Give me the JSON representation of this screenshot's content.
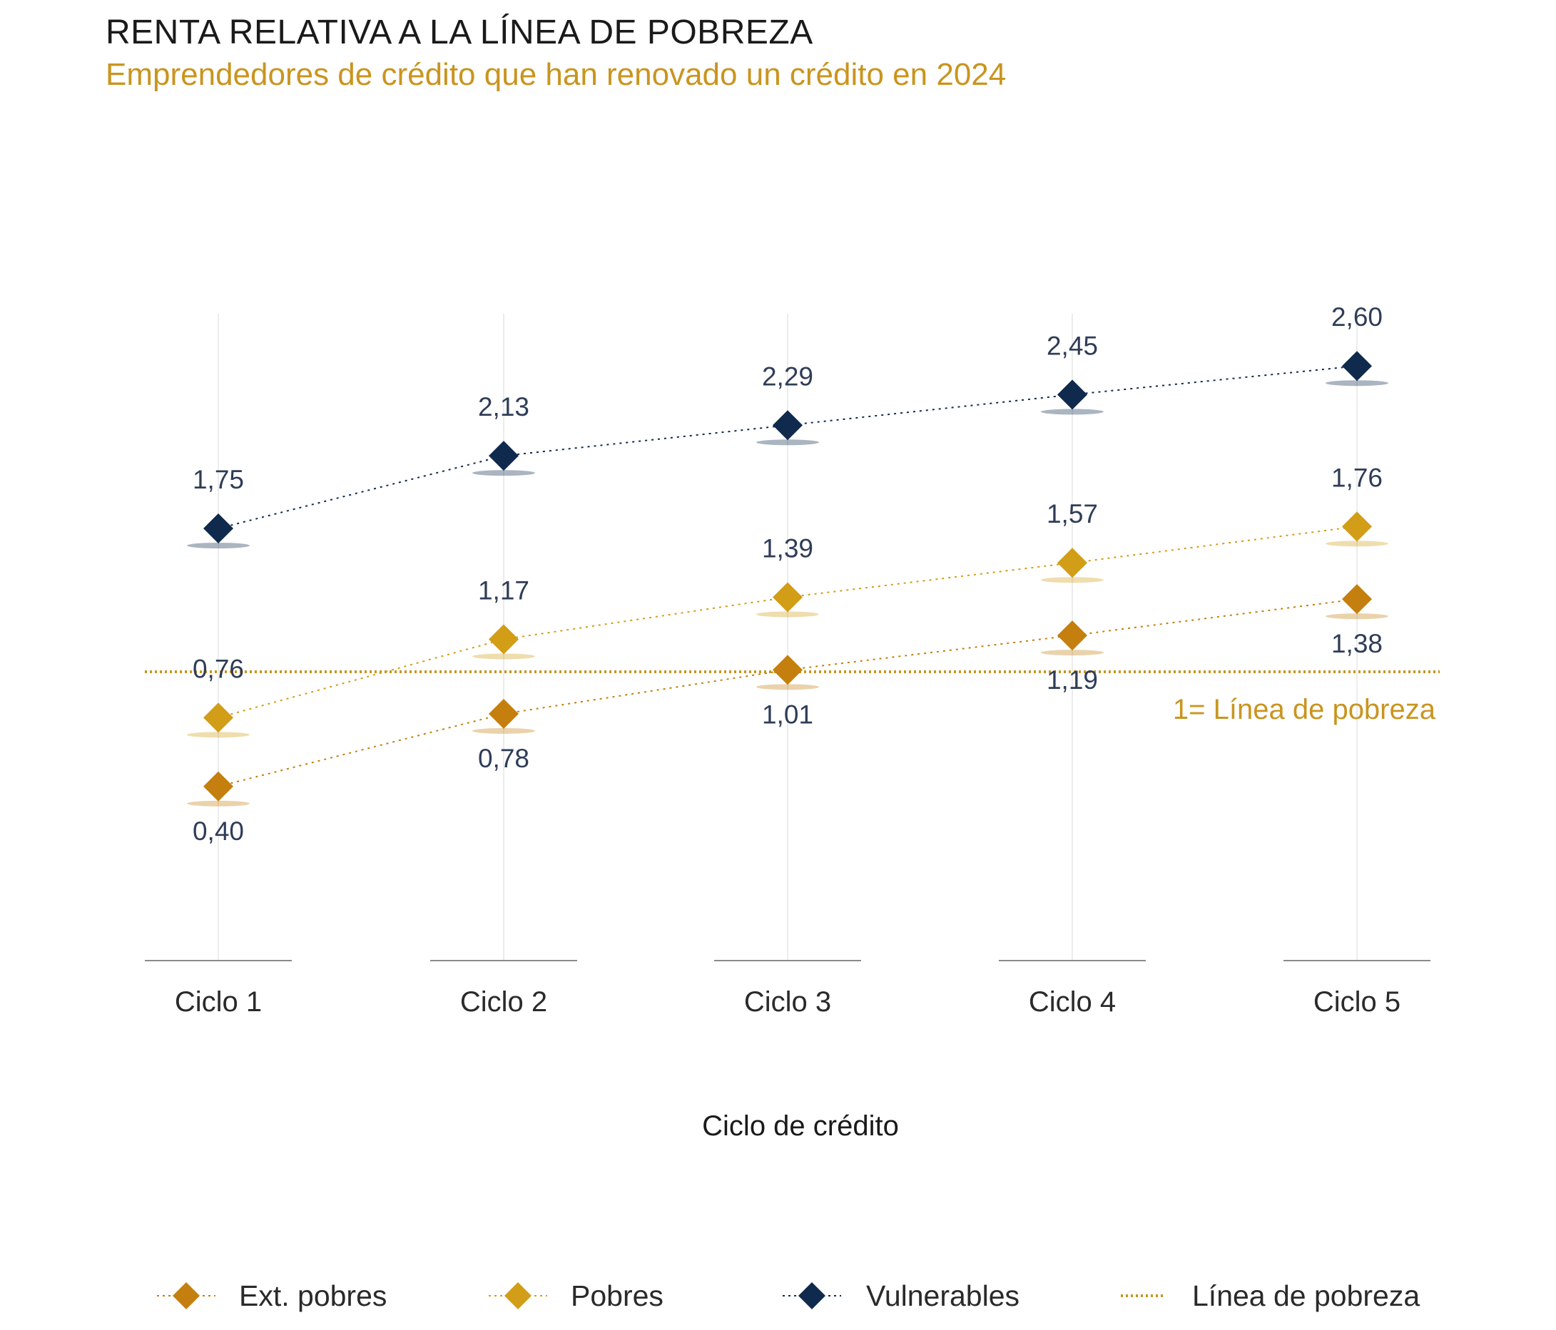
{
  "header": {
    "title": "RENTA RELATIVA A LA LÍNEA DE POBREZA",
    "subtitle": "Emprendedores de crédito que han renovado un crédito en 2024"
  },
  "chart_data": {
    "type": "line",
    "categories": [
      "Ciclo 1",
      "Ciclo 2",
      "Ciclo 3",
      "Ciclo 4",
      "Ciclo 5"
    ],
    "xlabel": "Ciclo de crédito",
    "ylabel": "",
    "ylim": [
      -0.5,
      3.2
    ],
    "series": [
      {
        "name": "Ext. pobres",
        "values": [
          0.4,
          0.78,
          1.01,
          1.19,
          1.38
        ],
        "labels": [
          "0,40",
          "0,78",
          "1,01",
          "1,19",
          "1,38"
        ],
        "color": "#c47f0e",
        "label_position": "below"
      },
      {
        "name": "Pobres",
        "values": [
          0.76,
          1.17,
          1.39,
          1.57,
          1.76
        ],
        "labels": [
          "0,76",
          "1,17",
          "1,39",
          "1,57",
          "1,76"
        ],
        "color": "#d29d17",
        "label_position": "above"
      },
      {
        "name": "Vulnerables",
        "values": [
          1.75,
          2.13,
          2.29,
          2.45,
          2.6
        ],
        "labels": [
          "1,75",
          "2,13",
          "2,29",
          "2,45",
          "2,60"
        ],
        "color": "#0f2a4d",
        "label_position": "above"
      }
    ],
    "reference_line": {
      "name": "Línea de pobreza",
      "value": 1,
      "annotation": "1= Línea de pobreza",
      "color": "#c9951f"
    },
    "legend": {
      "position": "bottom",
      "items": [
        "Ext. pobres",
        "Pobres",
        "Vulnerables",
        "Línea de pobreza"
      ]
    },
    "grid": false
  }
}
